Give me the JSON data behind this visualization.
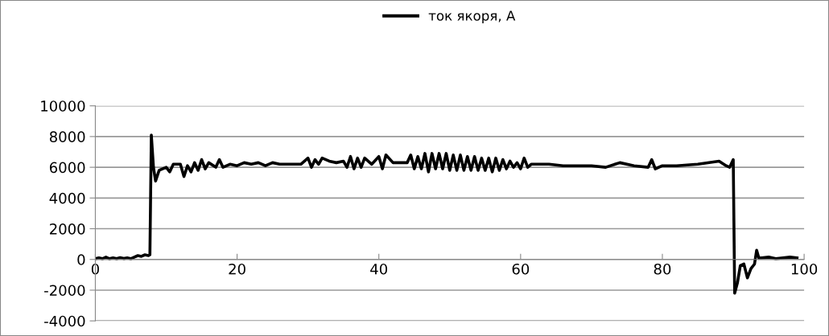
{
  "chart_data": {
    "type": "line",
    "xlim": [
      0,
      100
    ],
    "ylim": [
      -4000,
      10000
    ],
    "xticks": [
      0,
      20,
      40,
      60,
      80,
      100
    ],
    "yticks": [
      -4000,
      -2000,
      0,
      2000,
      4000,
      6000,
      8000,
      10000
    ],
    "grid": "y",
    "legend": "top",
    "marker": "none",
    "line_style": "solid",
    "series": [
      {
        "name": "ток якоря, А",
        "color": "#000000",
        "x": [
          0,
          0.5,
          1,
          1.5,
          2,
          2.5,
          3,
          3.5,
          4,
          4.5,
          5,
          5.5,
          6,
          6.5,
          7,
          7.5,
          7.7,
          7.9,
          8.2,
          8.5,
          9,
          10,
          10.5,
          11,
          12,
          12.5,
          13,
          13.5,
          14,
          14.5,
          15,
          15.5,
          16,
          17,
          17.5,
          18,
          19,
          20,
          21,
          22,
          23,
          24,
          25,
          26,
          28,
          29,
          30,
          30.5,
          31,
          31.5,
          32,
          33,
          34,
          35,
          35.5,
          36,
          36.5,
          37,
          37.5,
          38,
          39,
          40,
          40.5,
          41,
          42,
          43,
          44,
          44.5,
          45,
          45.5,
          46,
          46.5,
          47,
          47.5,
          48,
          48.5,
          49,
          49.5,
          50,
          50.5,
          51,
          51.5,
          52,
          52.5,
          53,
          53.5,
          54,
          54.5,
          55,
          55.5,
          56,
          56.5,
          57,
          57.5,
          58,
          58.5,
          59,
          59.5,
          60,
          60.5,
          61,
          61.5,
          62,
          64,
          66,
          68,
          70,
          72,
          74,
          76,
          78,
          78.5,
          79,
          80,
          82,
          85,
          88,
          89,
          89.5,
          90,
          90.2,
          90.6,
          91,
          91.5,
          92,
          92.5,
          93,
          93.3,
          93.6,
          94,
          95,
          96,
          97,
          98,
          99
        ],
        "values": [
          50,
          100,
          50,
          150,
          50,
          100,
          50,
          120,
          60,
          100,
          50,
          150,
          250,
          200,
          300,
          250,
          300,
          8100,
          6000,
          5100,
          5800,
          6000,
          5700,
          6200,
          6200,
          5400,
          6100,
          5700,
          6300,
          5800,
          6500,
          5900,
          6300,
          6000,
          6500,
          6000,
          6200,
          6100,
          6300,
          6200,
          6300,
          6100,
          6300,
          6200,
          6200,
          6200,
          6600,
          6000,
          6500,
          6200,
          6600,
          6400,
          6300,
          6400,
          6000,
          6700,
          5900,
          6600,
          6000,
          6600,
          6200,
          6700,
          5900,
          6800,
          6300,
          6300,
          6300,
          6800,
          5900,
          6700,
          5900,
          6900,
          5700,
          6900,
          5900,
          6900,
          5900,
          6900,
          5800,
          6800,
          5800,
          6800,
          5800,
          6700,
          5800,
          6700,
          5800,
          6600,
          5800,
          6600,
          5700,
          6600,
          5800,
          6500,
          5900,
          6400,
          6000,
          6300,
          5900,
          6600,
          6000,
          6200,
          6200,
          6200,
          6100,
          6100,
          6100,
          6000,
          6300,
          6100,
          6000,
          6500,
          5900,
          6100,
          6100,
          6200,
          6400,
          6100,
          6000,
          6500,
          -2200,
          -1500,
          -400,
          -300,
          -1200,
          -600,
          -300,
          600,
          100,
          100,
          150,
          50,
          100,
          150,
          100
        ]
      }
    ]
  }
}
